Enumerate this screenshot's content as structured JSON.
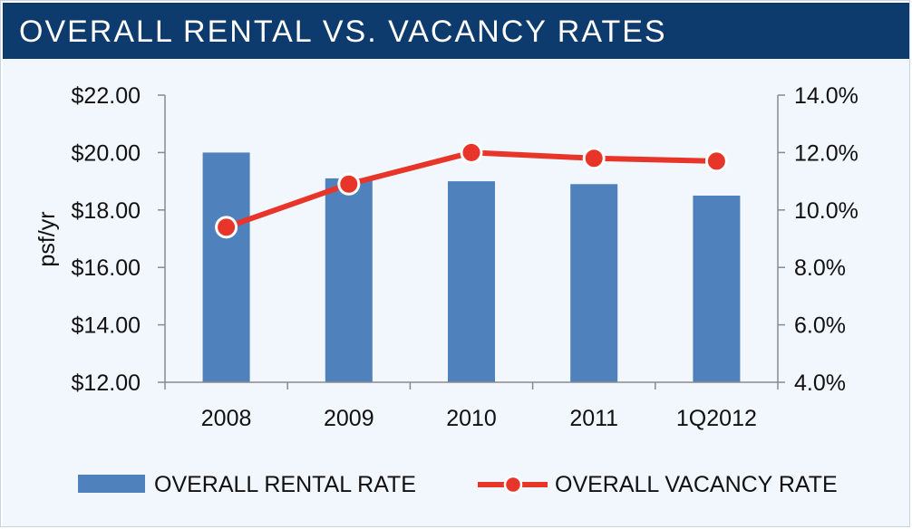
{
  "title": "OVERALL RENTAL VS. VACANCY RATES",
  "colors": {
    "bar": "#4f81bd",
    "line": "#e8352a",
    "header": "#0e3b6e",
    "panel": "#f2f6fd"
  },
  "chart_data": {
    "type": "bar",
    "categories": [
      "2008",
      "2009",
      "2010",
      "2011",
      "1Q2012"
    ],
    "series": [
      {
        "name": "OVERALL RENTAL RATE",
        "type": "bar",
        "axis": "left",
        "values": [
          20.0,
          19.1,
          19.0,
          18.9,
          18.5
        ]
      },
      {
        "name": "OVERALL VACANCY RATE",
        "type": "line",
        "axis": "right",
        "values": [
          9.4,
          10.9,
          12.0,
          11.8,
          11.7
        ]
      }
    ],
    "ylabel": "psf/yr",
    "ylim": [
      12,
      22
    ],
    "y2lim": [
      4,
      14
    ],
    "yticks": [
      "$22.00",
      "$20.00",
      "$18.00",
      "$16.00",
      "$14.00",
      "$12.00"
    ],
    "y2ticks": [
      "14.0%",
      "12.0%",
      "10.0%",
      "8.0%",
      "6.0%",
      "4.0%"
    ],
    "legend_position": "bottom",
    "grid": false
  }
}
